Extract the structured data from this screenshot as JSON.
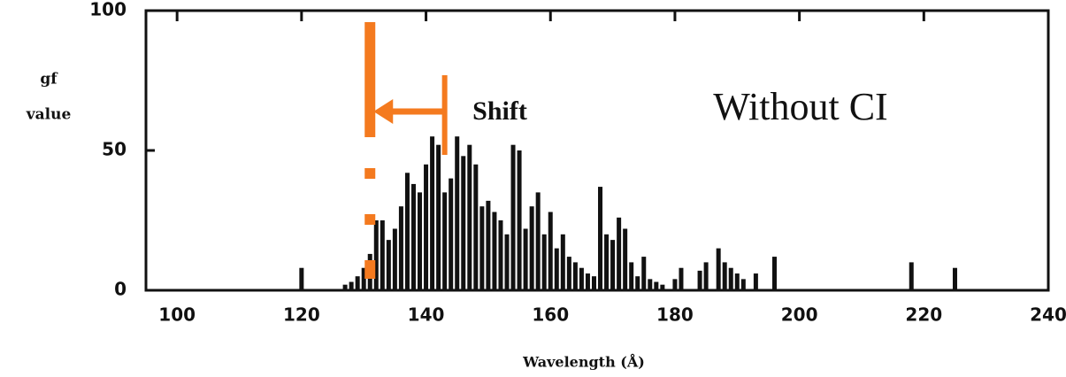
{
  "chart_data": {
    "type": "bar",
    "ylabel": [
      "gf",
      "value"
    ],
    "xlabel": "Wavelength (Å)",
    "annotations": {
      "note": "Without CI",
      "shift_label": "Shift",
      "shift_from": 143,
      "shift_to": 131
    },
    "x": [
      120,
      127,
      128,
      129,
      130,
      131,
      132,
      133,
      134,
      135,
      136,
      137,
      138,
      139,
      140,
      141,
      142,
      143,
      144,
      145,
      146,
      147,
      148,
      149,
      150,
      151,
      152,
      153,
      154,
      155,
      156,
      157,
      158,
      159,
      160,
      161,
      162,
      163,
      164,
      165,
      166,
      167,
      168,
      169,
      170,
      171,
      172,
      173,
      174,
      175,
      176,
      177,
      178,
      180,
      181,
      184,
      185,
      187,
      188,
      189,
      190,
      191,
      193,
      196,
      218,
      225
    ],
    "values": [
      8,
      2,
      3,
      5,
      8,
      13,
      25,
      25,
      18,
      22,
      30,
      42,
      38,
      35,
      45,
      55,
      52,
      35,
      40,
      55,
      48,
      52,
      45,
      30,
      32,
      28,
      25,
      20,
      52,
      50,
      22,
      30,
      35,
      20,
      28,
      15,
      20,
      12,
      10,
      8,
      6,
      5,
      37,
      20,
      18,
      26,
      22,
      10,
      5,
      12,
      4,
      3,
      2,
      4,
      8,
      7,
      10,
      15,
      10,
      8,
      6,
      4,
      6,
      12,
      10,
      8
    ],
    "color": "#111111",
    "marker_color": "#f47a1f",
    "xlim": [
      95,
      240
    ],
    "xticks": [
      100,
      120,
      140,
      160,
      180,
      200,
      220,
      240
    ],
    "ylim": [
      0,
      100
    ],
    "yticks": [
      0,
      50,
      100
    ]
  }
}
